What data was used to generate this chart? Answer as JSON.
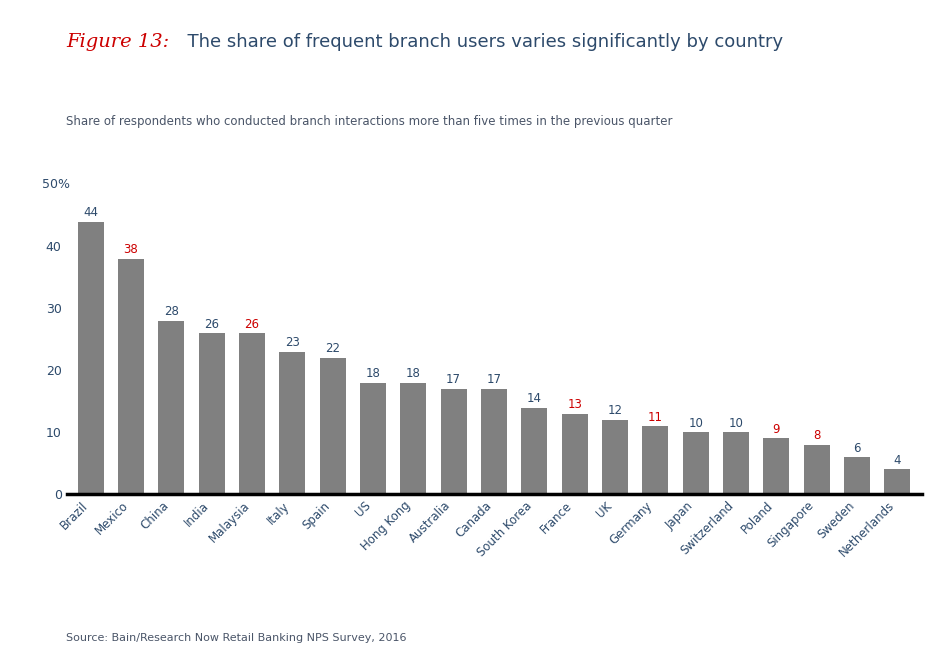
{
  "title_red": "Figure 13:",
  "title_black": "  The share of frequent branch users varies significantly by country",
  "subtitle": "Share of respondents who conducted branch interactions more than five times in the previous quarter",
  "source": "Source: Bain/Research Now Retail Banking NPS Survey, 2016",
  "categories": [
    "Brazil",
    "Mexico",
    "China",
    "India",
    "Malaysia",
    "Italy",
    "Spain",
    "US",
    "Hong Kong",
    "Australia",
    "Canada",
    "South Korea",
    "France",
    "UK",
    "Germany",
    "Japan",
    "Switzerland",
    "Poland",
    "Singapore",
    "Sweden",
    "Netherlands"
  ],
  "values": [
    44,
    38,
    28,
    26,
    26,
    23,
    22,
    18,
    18,
    17,
    17,
    14,
    13,
    12,
    11,
    10,
    10,
    9,
    8,
    6,
    4
  ],
  "bar_color": "#808080",
  "background_color": "#ffffff",
  "ylim": [
    0,
    50
  ],
  "yticks": [
    0,
    10,
    20,
    30,
    40
  ],
  "ytick_labels": [
    "0",
    "10",
    "20",
    "30",
    "40"
  ],
  "title_red_color": "#cc0000",
  "title_black_color": "#2d4a6b",
  "subtitle_color": "#4a5568",
  "source_color": "#4a5568",
  "label_color_default": "#2d4a6b",
  "label_color_red_indices": [
    1,
    4,
    12,
    14,
    17,
    18
  ],
  "label_color_red": "#cc0000"
}
